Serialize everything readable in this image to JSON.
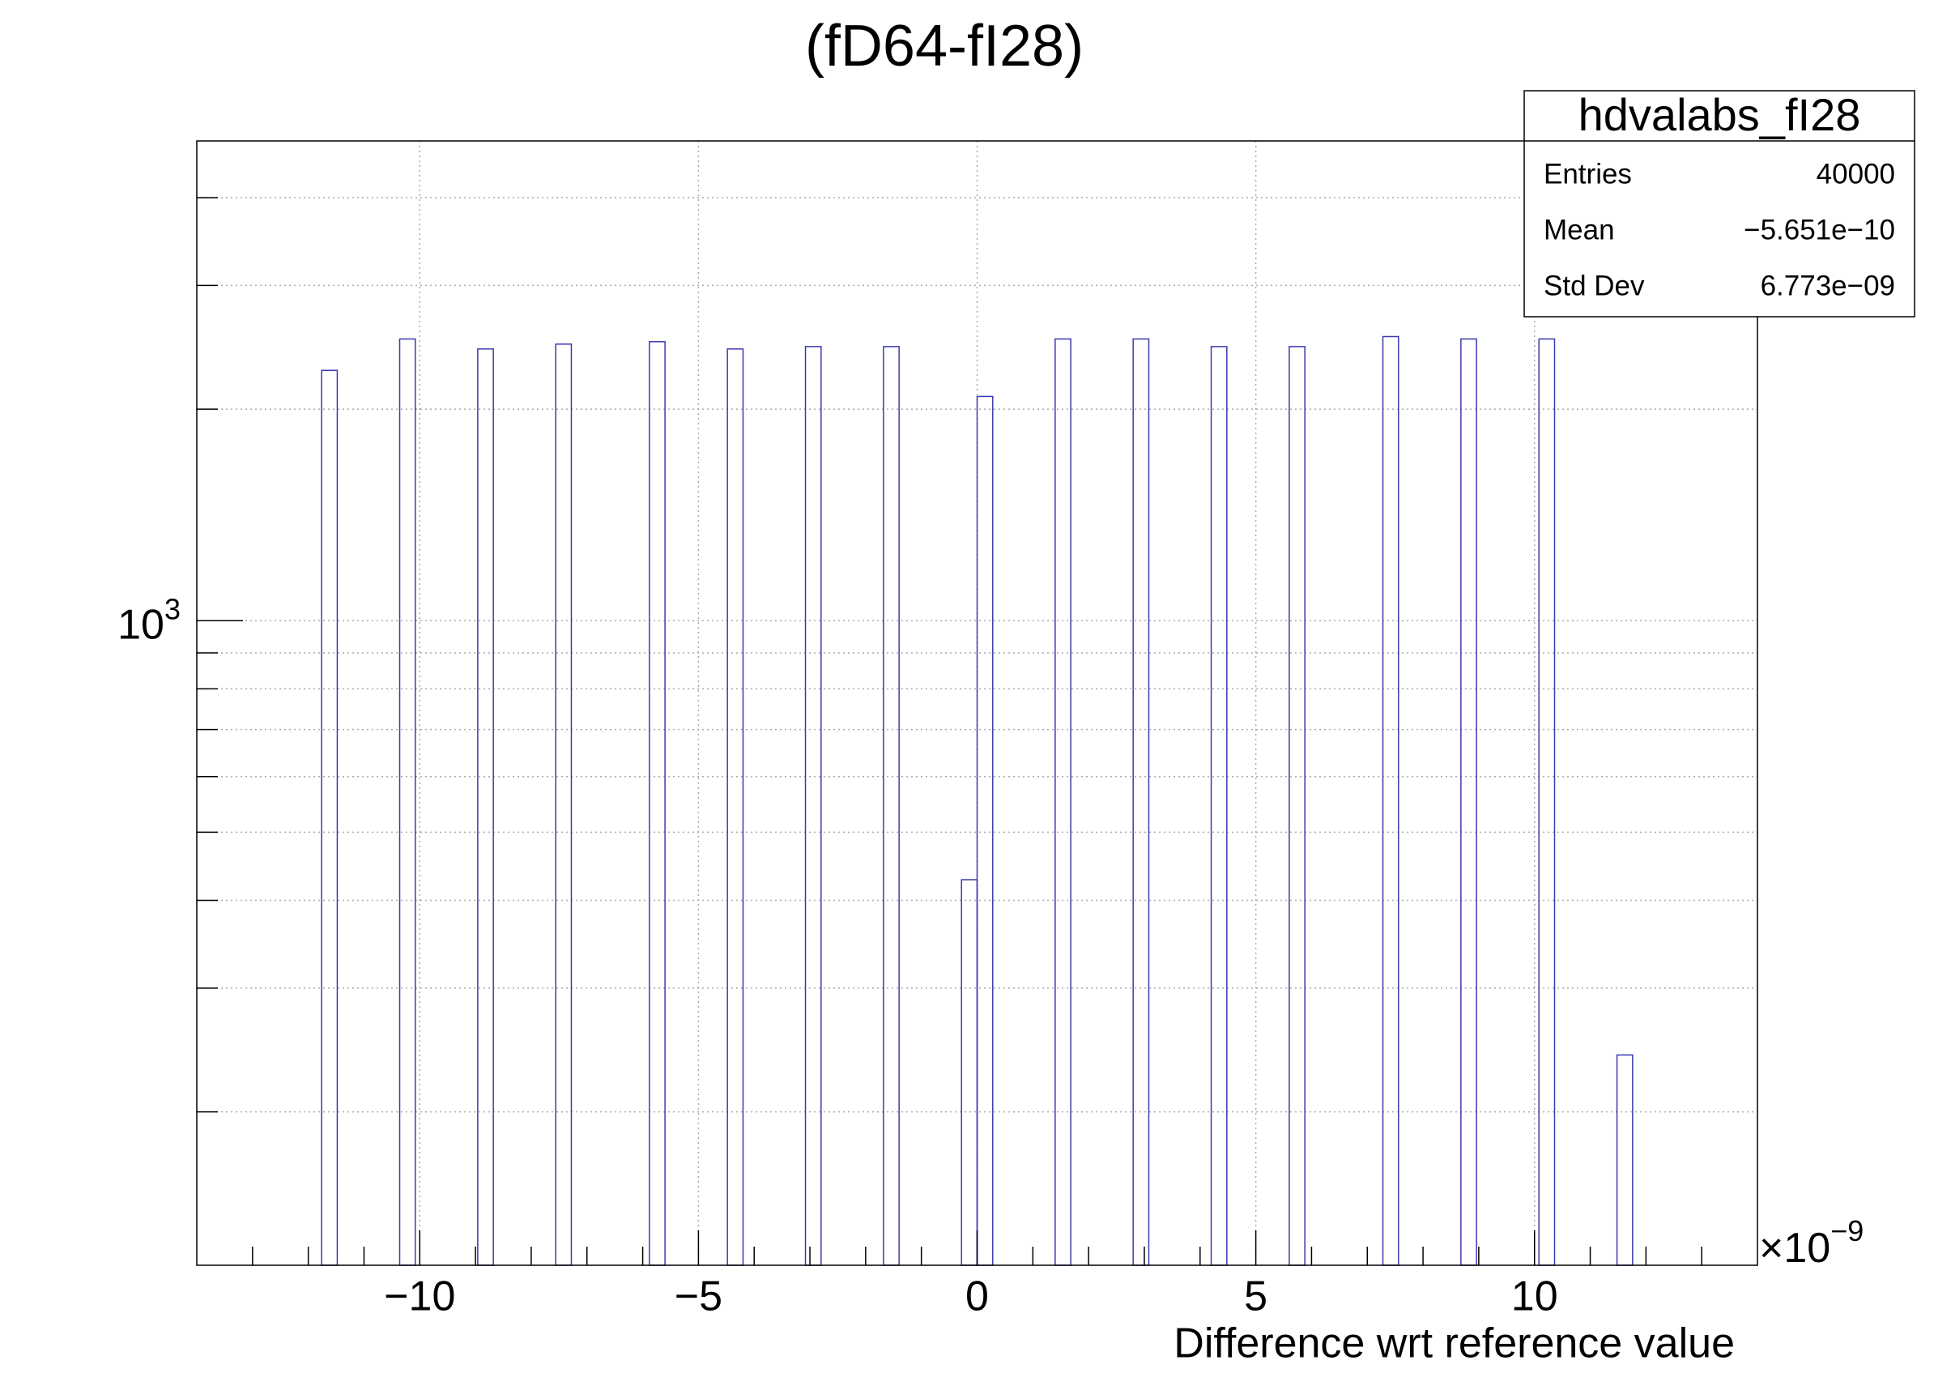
{
  "chart_data": {
    "type": "histogram",
    "title": "(fD64-fI28)",
    "x_label": "Difference wrt reference value",
    "x_multiplier": {
      "base": "×10",
      "exponent": "−9"
    },
    "bins": [
      -14,
      -13.72,
      -13.44,
      -13.16,
      -12.88,
      -12.6,
      -12.32,
      -12.04,
      -11.76,
      -11.48,
      -11.2,
      -10.92,
      -10.64,
      -10.36,
      -10.08,
      -9.8,
      -9.52,
      -9.24,
      -8.96,
      -8.68,
      -8.4,
      -8.12,
      -7.84,
      -7.56,
      -7.28,
      -7,
      -6.72,
      -6.44,
      -6.16,
      -5.88,
      -5.6,
      -5.32,
      -5.04,
      -4.76,
      -4.48,
      -4.2,
      -3.92,
      -3.64,
      -3.36,
      -3.08,
      -2.8,
      -2.52,
      -2.24,
      -1.96,
      -1.68,
      -1.4,
      -1.12,
      -0.84,
      -0.56,
      -0.28,
      0,
      0.28,
      0.56,
      0.84,
      1.12,
      1.4,
      1.68,
      1.96,
      2.24,
      2.52,
      2.8,
      3.08,
      3.36,
      3.64,
      3.92,
      4.2,
      4.48,
      4.76,
      5.04,
      5.32,
      5.6,
      5.88,
      6.16,
      6.44,
      6.72,
      7,
      7.28,
      7.56,
      7.84,
      8.12,
      8.4,
      8.68,
      8.96,
      9.24,
      9.52,
      9.8,
      10.08,
      10.36,
      10.64,
      10.92,
      11.2,
      11.48,
      11.76,
      12.04,
      12.32,
      12.6,
      12.88,
      13.16,
      13.44,
      13.72,
      14
    ],
    "counts": [
      0,
      0,
      0,
      0,
      0,
      0,
      0,
      0,
      2271,
      0,
      0,
      0,
      0,
      2517,
      0,
      0,
      0,
      0,
      2436,
      0,
      0,
      0,
      0,
      2475,
      0,
      0,
      0,
      0,
      0,
      2495,
      0,
      0,
      0,
      0,
      2436,
      0,
      0,
      0,
      0,
      2455,
      0,
      0,
      0,
      0,
      2455,
      0,
      0,
      0,
      0,
      428,
      2085,
      0,
      0,
      0,
      0,
      2517,
      0,
      0,
      0,
      0,
      2517,
      0,
      0,
      0,
      0,
      2455,
      0,
      0,
      0,
      0,
      2455,
      0,
      0,
      0,
      0,
      0,
      2537,
      0,
      0,
      0,
      0,
      2517,
      0,
      0,
      0,
      0,
      2517,
      0,
      0,
      0,
      0,
      241,
      0,
      0,
      0,
      0,
      0,
      0,
      0,
      0
    ],
    "color": "#3a3ab0",
    "xlim": [
      -14,
      14
    ],
    "xticks": [
      {
        "value": -10,
        "label": "−10"
      },
      {
        "value": -5,
        "label": "−5"
      },
      0,
      5,
      10
    ],
    "xminorticks": [
      -13,
      -12,
      -11,
      -9,
      -8,
      -7,
      -6,
      -4,
      -3,
      -2,
      -1,
      1,
      2,
      3,
      4,
      6,
      7,
      8,
      9,
      11,
      12,
      13
    ],
    "ylim": [
      121,
      4816
    ],
    "yscale": "log",
    "yticks": [
      {
        "value": 1000,
        "label": "10",
        "exponent": "3"
      }
    ],
    "yminorticks": [
      200,
      300,
      400,
      500,
      600,
      700,
      800,
      900,
      2000,
      3000,
      4000
    ],
    "grid": true,
    "stats": {
      "title": "hdvalabs_fI28",
      "rows": [
        [
          "Entries",
          "40000"
        ],
        [
          "Mean",
          "−5.651e−10"
        ],
        [
          "Std Dev",
          "6.773e−09"
        ]
      ]
    }
  }
}
